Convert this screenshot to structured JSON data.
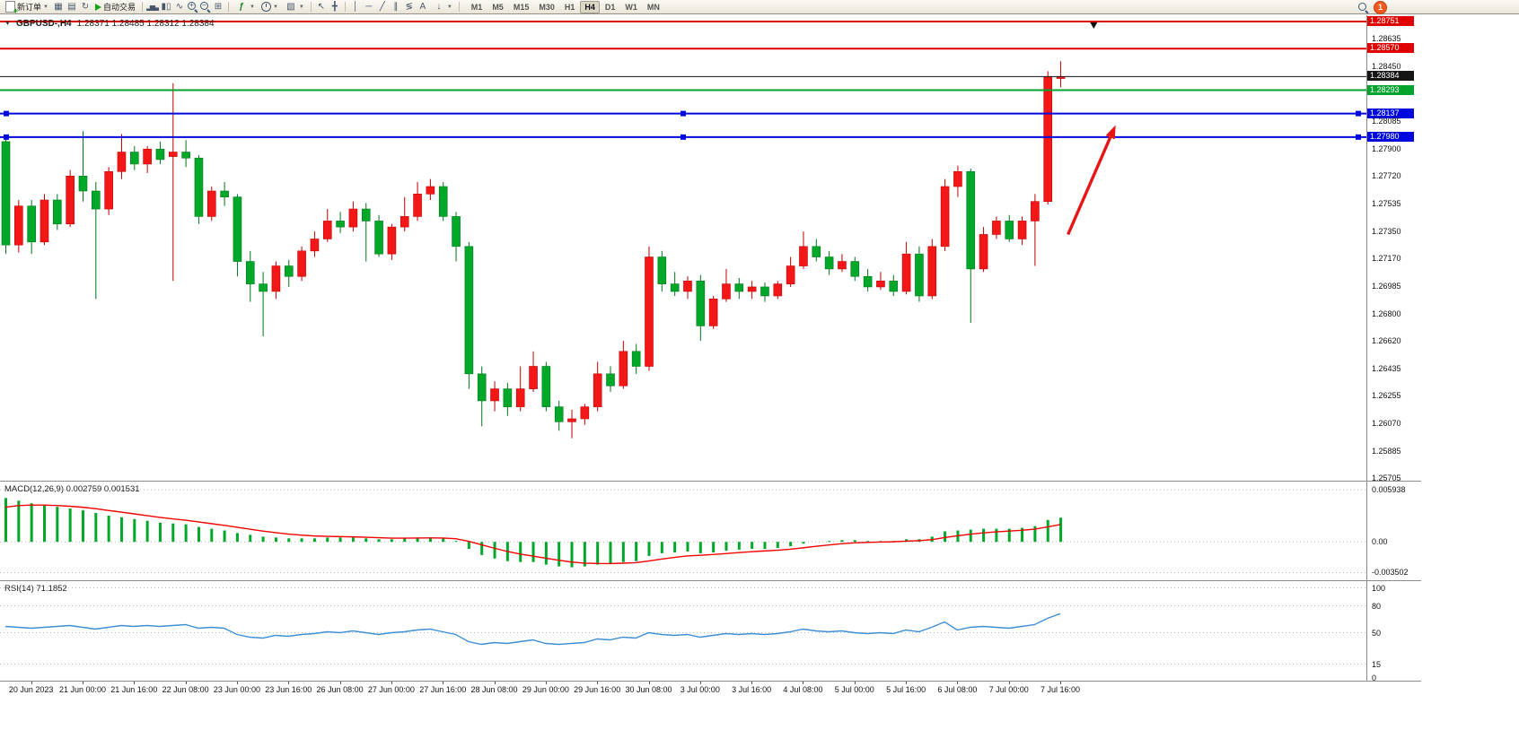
{
  "toolbar": {
    "new_order_label": "新订单",
    "auto_trade_label": "自动交易",
    "text_tool_label": "A",
    "indicators_glyph": "ƒ",
    "timeframes": [
      "M1",
      "M5",
      "M15",
      "M30",
      "H1",
      "H4",
      "D1",
      "W1",
      "MN"
    ],
    "active_timeframe": "H4",
    "notification_count": "1"
  },
  "symbol_bar": {
    "collapse_icon": "▼",
    "symbol": "GBPUSD-,H4",
    "ohlc": "1.28371 1.28485 1.28312 1.28384"
  },
  "chart_data": {
    "type": "candlestick",
    "symbol": "GBPUSD",
    "timeframe": "H4",
    "main_ylim": [
      1.25693,
      1.28793
    ],
    "colors": {
      "bull": "#f31717",
      "bull_dark": "#bf0000",
      "bear": "#00a82a",
      "bear_dark": "#00771c"
    },
    "candles": [
      [
        1.2795,
        1.2799,
        1.272,
        1.2726
      ],
      [
        1.2726,
        1.2756,
        1.2721,
        1.2752
      ],
      [
        1.2752,
        1.2756,
        1.272,
        1.2728
      ],
      [
        1.2728,
        1.276,
        1.2726,
        1.2756
      ],
      [
        1.2756,
        1.276,
        1.2736,
        1.274
      ],
      [
        1.274,
        1.2776,
        1.2738,
        1.2772
      ],
      [
        1.2772,
        1.2802,
        1.2755,
        1.2762
      ],
      [
        1.2762,
        1.2768,
        1.269,
        1.275
      ],
      [
        1.275,
        1.2778,
        1.2746,
        1.2775
      ],
      [
        1.2775,
        1.28,
        1.277,
        1.2788
      ],
      [
        1.2788,
        1.2792,
        1.2776,
        1.278
      ],
      [
        1.278,
        1.2792,
        1.2774,
        1.279
      ],
      [
        1.279,
        1.2795,
        1.278,
        1.2783
      ],
      [
        1.2785,
        1.2834,
        1.2702,
        1.2788
      ],
      [
        1.2788,
        1.2796,
        1.2778,
        1.2784
      ],
      [
        1.2784,
        1.2786,
        1.274,
        1.2745
      ],
      [
        1.2745,
        1.2765,
        1.2742,
        1.2762
      ],
      [
        1.2762,
        1.2768,
        1.2752,
        1.2758
      ],
      [
        1.2758,
        1.276,
        1.2705,
        1.2715
      ],
      [
        1.2715,
        1.2722,
        1.2688,
        1.27
      ],
      [
        1.27,
        1.2708,
        1.2665,
        1.2695
      ],
      [
        1.2695,
        1.2715,
        1.269,
        1.2712
      ],
      [
        1.2712,
        1.2716,
        1.2698,
        1.2705
      ],
      [
        1.2705,
        1.2725,
        1.2702,
        1.2722
      ],
      [
        1.2722,
        1.2735,
        1.2718,
        1.273
      ],
      [
        1.273,
        1.275,
        1.2728,
        1.2742
      ],
      [
        1.2742,
        1.2748,
        1.2734,
        1.2738
      ],
      [
        1.2738,
        1.2755,
        1.2735,
        1.275
      ],
      [
        1.275,
        1.2754,
        1.2715,
        1.2742
      ],
      [
        1.2742,
        1.2746,
        1.2718,
        1.272
      ],
      [
        1.272,
        1.274,
        1.2716,
        1.2738
      ],
      [
        1.2738,
        1.2758,
        1.2735,
        1.2745
      ],
      [
        1.2745,
        1.2768,
        1.2742,
        1.276
      ],
      [
        1.276,
        1.277,
        1.2756,
        1.2765
      ],
      [
        1.2765,
        1.2768,
        1.2742,
        1.2745
      ],
      [
        1.2745,
        1.2748,
        1.2715,
        1.2725
      ],
      [
        1.2725,
        1.2728,
        1.263,
        1.264
      ],
      [
        1.264,
        1.2645,
        1.2605,
        1.2622
      ],
      [
        1.2622,
        1.2635,
        1.2615,
        1.263
      ],
      [
        1.263,
        1.2634,
        1.2612,
        1.2618
      ],
      [
        1.2618,
        1.2645,
        1.2615,
        1.263
      ],
      [
        1.263,
        1.2655,
        1.2628,
        1.2645
      ],
      [
        1.2645,
        1.2648,
        1.2615,
        1.2618
      ],
      [
        1.2618,
        1.2622,
        1.2602,
        1.2608
      ],
      [
        1.2608,
        1.2616,
        1.2597,
        1.261
      ],
      [
        1.261,
        1.262,
        1.2606,
        1.2618
      ],
      [
        1.2618,
        1.2648,
        1.2615,
        1.264
      ],
      [
        1.264,
        1.2645,
        1.2628,
        1.2632
      ],
      [
        1.2632,
        1.2662,
        1.263,
        1.2655
      ],
      [
        1.2655,
        1.266,
        1.264,
        1.2645
      ],
      [
        1.2645,
        1.2725,
        1.2642,
        1.2718
      ],
      [
        1.2718,
        1.2722,
        1.2695,
        1.27
      ],
      [
        1.27,
        1.2708,
        1.2692,
        1.2695
      ],
      [
        1.2695,
        1.2705,
        1.269,
        1.2702
      ],
      [
        1.2702,
        1.2706,
        1.2662,
        1.2672
      ],
      [
        1.2672,
        1.2692,
        1.267,
        1.269
      ],
      [
        1.269,
        1.271,
        1.2688,
        1.27
      ],
      [
        1.27,
        1.2704,
        1.269,
        1.2695
      ],
      [
        1.2695,
        1.2702,
        1.269,
        1.2698
      ],
      [
        1.2698,
        1.2701,
        1.2688,
        1.2692
      ],
      [
        1.2692,
        1.2702,
        1.269,
        1.27
      ],
      [
        1.27,
        1.2718,
        1.2698,
        1.2712
      ],
      [
        1.2712,
        1.2735,
        1.271,
        1.2725
      ],
      [
        1.2725,
        1.273,
        1.2715,
        1.2718
      ],
      [
        1.2718,
        1.2722,
        1.2706,
        1.271
      ],
      [
        1.271,
        1.272,
        1.2708,
        1.2715
      ],
      [
        1.2715,
        1.2718,
        1.2702,
        1.2705
      ],
      [
        1.2705,
        1.271,
        1.2695,
        1.2698
      ],
      [
        1.2698,
        1.2708,
        1.2696,
        1.2702
      ],
      [
        1.2702,
        1.2706,
        1.2692,
        1.2695
      ],
      [
        1.2695,
        1.2728,
        1.2693,
        1.272
      ],
      [
        1.272,
        1.2725,
        1.2688,
        1.2692
      ],
      [
        1.2692,
        1.273,
        1.269,
        1.2725
      ],
      [
        1.2725,
        1.277,
        1.2722,
        1.2765
      ],
      [
        1.2765,
        1.2779,
        1.2758,
        1.2775
      ],
      [
        1.2775,
        1.2777,
        1.2674,
        1.271
      ],
      [
        1.271,
        1.2738,
        1.2708,
        1.2733
      ],
      [
        1.2733,
        1.2745,
        1.273,
        1.2742
      ],
      [
        1.2742,
        1.2746,
        1.2728,
        1.273
      ],
      [
        1.273,
        1.2745,
        1.2726,
        1.2742
      ],
      [
        1.2742,
        1.276,
        1.2712,
        1.2755
      ],
      [
        1.2755,
        1.2842,
        1.2753,
        1.2838
      ],
      [
        1.28371,
        1.28485,
        1.28312,
        1.28384
      ]
    ],
    "hlines": [
      {
        "text": "1.28751",
        "price": 1.28751,
        "color": "#e00000",
        "width": 2,
        "handles": false
      },
      {
        "text": "1.28570",
        "price": 1.2857,
        "color": "#e00000",
        "width": 2,
        "handles": false
      },
      {
        "text": "1.28384",
        "price": 1.28384,
        "color": "#151515",
        "width": 1,
        "handles": false
      },
      {
        "text": "1.28293",
        "price": 1.28293,
        "color": "#00a32e",
        "width": 2,
        "handles": false
      },
      {
        "text": "1.28137",
        "price": 1.28137,
        "color": "#0008dd",
        "width": 2,
        "handles": true
      },
      {
        "text": "1.27980",
        "price": 1.2798,
        "color": "#0008dd",
        "width": 2,
        "handles": true
      }
    ],
    "price_axis": {
      "ticks": [
        {
          "text": "1.28635",
          "price": 1.28635
        },
        {
          "text": "1.28450",
          "price": 1.2845
        },
        {
          "text": "1.28085",
          "price": 1.28085
        },
        {
          "text": "1.27900",
          "price": 1.279
        },
        {
          "text": "1.27720",
          "price": 1.2772
        },
        {
          "text": "1.27535",
          "price": 1.27535
        },
        {
          "text": "1.27350",
          "price": 1.2735
        },
        {
          "text": "1.27170",
          "price": 1.2717
        },
        {
          "text": "1.26985",
          "price": 1.26985
        },
        {
          "text": "1.26800",
          "price": 1.268
        },
        {
          "text": "1.26620",
          "price": 1.2662
        },
        {
          "text": "1.26435",
          "price": 1.26435
        },
        {
          "text": "1.26255",
          "price": 1.26255
        },
        {
          "text": "1.26070",
          "price": 1.2607
        },
        {
          "text": "1.25885",
          "price": 1.25885
        },
        {
          "text": "1.25705",
          "price": 1.25705
        }
      ]
    },
    "x_labels": [
      "20 Jun 2023",
      "21 Jun 00:00",
      "21 Jun 16:00",
      "22 Jun 08:00",
      "23 Jun 00:00",
      "23 Jun 16:00",
      "26 Jun 08:00",
      "27 Jun 00:00",
      "27 Jun 16:00",
      "28 Jun 08:00",
      "29 Jun 00:00",
      "29 Jun 16:00",
      "30 Jun 08:00",
      "3 Jul 00:00",
      "3 Jul 16:00",
      "4 Jul 08:00",
      "5 Jul 00:00",
      "5 Jul 16:00",
      "6 Jul 08:00",
      "7 Jul 00:00",
      "7 Jul 16:00"
    ],
    "x_label_first_candle": 2,
    "x_label_step": 4,
    "arrow": {
      "from_bar": 82.6,
      "from_price": 1.2733,
      "to_bar": 86.3,
      "to_price": 1.2806,
      "color": "#e81515"
    },
    "marker": {
      "bar": 84.6,
      "price": 1.28721,
      "color": "#111111"
    },
    "macd": {
      "label": "MACD(12,26,9) 0.002759 0.001531",
      "main_value": 0.002759,
      "signal_value": 0.001531,
      "ylim": [
        -0.004376,
        0.006877
      ],
      "axis": [
        {
          "text": "0.005938",
          "value": 0.005938
        },
        {
          "text": "0.00",
          "value": 0
        },
        {
          "text": "-0.003502",
          "value": -0.003502
        }
      ],
      "histogram_color": "#00a82a",
      "signal_color": "#f50000",
      "values": [
        0.005,
        0.0047,
        0.0044,
        0.0042,
        0.004,
        0.0038,
        0.0036,
        0.0033,
        0.003,
        0.0028,
        0.0026,
        0.0024,
        0.0022,
        0.0021,
        0.002,
        0.0017,
        0.0015,
        0.0013,
        0.001,
        0.0008,
        0.0006,
        0.0005,
        0.0004,
        0.0004,
        0.0004,
        0.0005,
        0.0005,
        0.0005,
        0.0004,
        0.0003,
        0.0003,
        0.0004,
        0.0005,
        0.0005,
        0.0004,
        0.0001,
        -0.0008,
        -0.0015,
        -0.0019,
        -0.0022,
        -0.0023,
        -0.0023,
        -0.0026,
        -0.0028,
        -0.0029,
        -0.0028,
        -0.0026,
        -0.0025,
        -0.0023,
        -0.0022,
        -0.0016,
        -0.0013,
        -0.0012,
        -0.0011,
        -0.0013,
        -0.0012,
        -0.001,
        -0.0009,
        -0.0008,
        -0.0008,
        -0.0007,
        -0.0005,
        -0.0002,
        0,
        0.0001,
        0.0002,
        0.0002,
        0.0001,
        0.0001,
        0.0001,
        0.0003,
        0.0003,
        0.0006,
        0.0012,
        0.0013,
        0.0014,
        0.0015,
        0.0015,
        0.0015,
        0.0016,
        0.0018,
        0.0025,
        0.002759
      ]
    },
    "rsi": {
      "label": "RSI(14) 71.1852",
      "current_value": 71.1852,
      "ylim": [
        -3.5,
        107.5
      ],
      "levels": [
        100,
        80,
        50,
        15
      ],
      "axis": [
        {
          "text": "100",
          "value": 100
        },
        {
          "text": "80",
          "value": 80
        },
        {
          "text": "50",
          "value": 50
        },
        {
          "text": "15",
          "value": 15
        },
        {
          "text": "0",
          "value": 0
        }
      ],
      "line_color": "#3e8fd4",
      "values": [
        57,
        56,
        55,
        56,
        57,
        58,
        56,
        54,
        56,
        58,
        57,
        58,
        57,
        58,
        59,
        55,
        56,
        55,
        48,
        45,
        44,
        47,
        46,
        48,
        49,
        51,
        50,
        52,
        50,
        48,
        50,
        51,
        53,
        54,
        51,
        48,
        40,
        37,
        39,
        38,
        40,
        42,
        38,
        37,
        38,
        39,
        43,
        42,
        45,
        44,
        50,
        48,
        47,
        48,
        45,
        47,
        49,
        48,
        49,
        48,
        49,
        51,
        54,
        52,
        51,
        52,
        50,
        49,
        50,
        49,
        53,
        51,
        56,
        62,
        53,
        56,
        57,
        56,
        55,
        57,
        59,
        66,
        71.19
      ]
    }
  }
}
